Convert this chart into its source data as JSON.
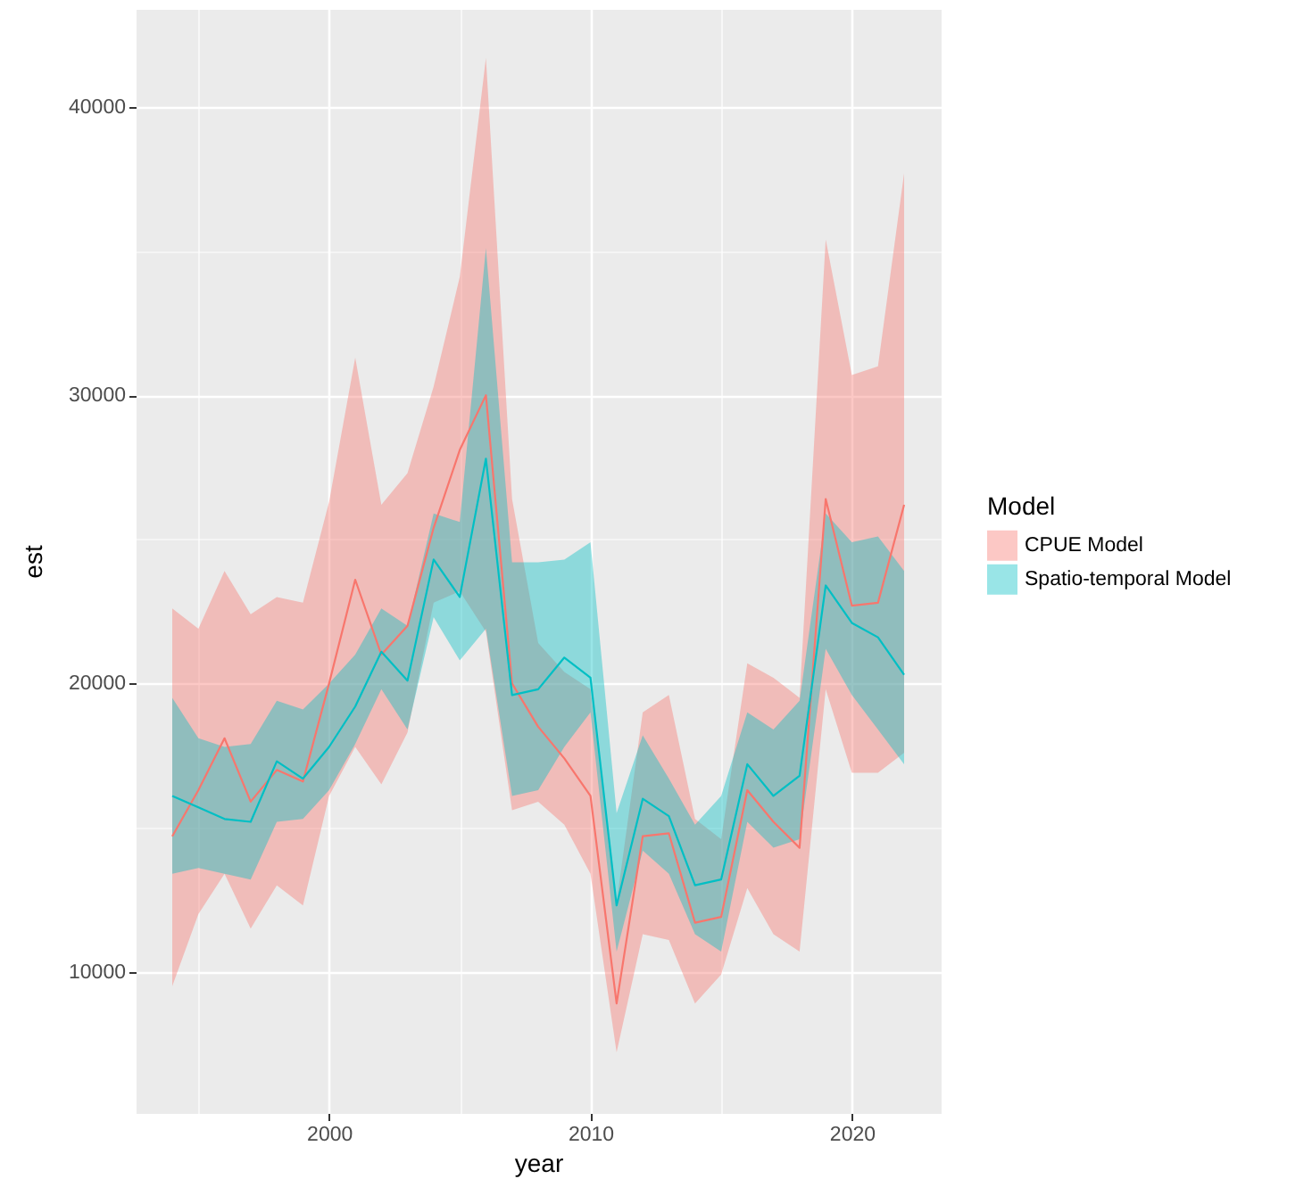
{
  "chart_data": {
    "type": "line",
    "xlabel": "year",
    "ylabel": "est",
    "legend_title": "Model",
    "legend": "right",
    "grid": true,
    "x": [
      1994,
      1995,
      1996,
      1997,
      1998,
      1999,
      2000,
      2001,
      2002,
      2003,
      2004,
      2005,
      2006,
      2007,
      2008,
      2009,
      2010,
      2011,
      2012,
      2013,
      2014,
      2015,
      2016,
      2017,
      2018,
      2019,
      2020,
      2021,
      2022
    ],
    "xlim": [
      1992.6,
      2023.4
    ],
    "ylim": [
      5100,
      43400
    ],
    "xticks": [
      {
        "value": 1995,
        "label": null
      },
      2000,
      {
        "value": 2005,
        "label": null
      },
      2010,
      {
        "value": 2015,
        "label": null
      },
      2020
    ],
    "yticks": [
      10000,
      {
        "value": 15000,
        "label": null
      },
      20000,
      {
        "value": 25000,
        "label": null
      },
      30000,
      {
        "value": 35000,
        "label": null
      },
      40000
    ],
    "series": [
      {
        "name": "CPUE Model",
        "color": "#f8766d",
        "values": [
          14700,
          16300,
          18100,
          15900,
          17000,
          16600,
          20000,
          23600,
          21000,
          22000,
          25400,
          28100,
          30000,
          20000,
          18500,
          17400,
          16100,
          8900,
          14700,
          14800,
          11700,
          11900,
          16300,
          15200,
          14300,
          26400,
          22700,
          22800,
          26200
        ],
        "lower": [
          9500,
          12000,
          13400,
          11500,
          13000,
          12300,
          16100,
          17800,
          16500,
          18300,
          22800,
          23200,
          21800,
          15600,
          15900,
          15100,
          13400,
          7200,
          11300,
          11100,
          8900,
          9900,
          12900,
          11300,
          10700,
          19800,
          16900,
          16900,
          17600
        ],
        "upper": [
          22600,
          21900,
          23900,
          22400,
          23000,
          22800,
          26300,
          31300,
          26200,
          27300,
          30300,
          34100,
          41700,
          26400,
          21400,
          20400,
          19800,
          12400,
          19000,
          19600,
          15300,
          14600,
          20700,
          20200,
          19500,
          35400,
          30700,
          31000,
          37700
        ]
      },
      {
        "name": "Spatio-temporal Model",
        "color": "#00bfc4",
        "values": [
          16100,
          15700,
          15300,
          15200,
          17300,
          16700,
          17800,
          19200,
          21100,
          20100,
          24300,
          23000,
          27800,
          19600,
          19800,
          20900,
          20200,
          12300,
          16000,
          15400,
          13000,
          13200,
          17200,
          16100,
          16800,
          23400,
          22100,
          21600,
          20300
        ],
        "lower": [
          13400,
          13600,
          13400,
          13200,
          15200,
          15300,
          16300,
          17900,
          19800,
          18400,
          22300,
          20800,
          21900,
          16100,
          16300,
          17800,
          19000,
          10700,
          14200,
          13400,
          11300,
          10700,
          15200,
          14300,
          14600,
          21200,
          19600,
          18400,
          17200
        ],
        "upper": [
          19500,
          18100,
          17800,
          17900,
          19400,
          19100,
          20000,
          21000,
          22600,
          22000,
          25900,
          25600,
          35100,
          24200,
          24200,
          24300,
          24900,
          15500,
          18200,
          16700,
          15100,
          16100,
          19000,
          18400,
          19400,
          25900,
          24900,
          25100,
          23900
        ]
      }
    ]
  }
}
